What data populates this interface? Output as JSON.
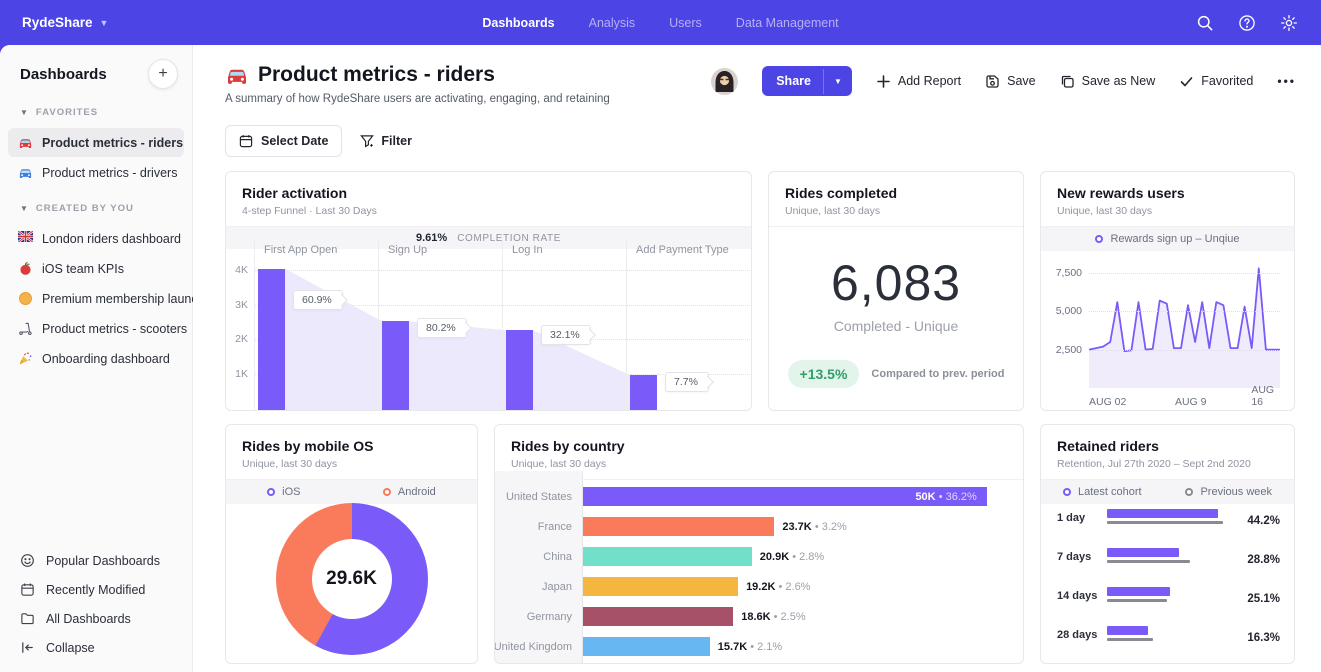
{
  "brand": {
    "name": "RydeShare"
  },
  "topnav": {
    "items": [
      {
        "label": "Dashboards",
        "active": true
      },
      {
        "label": "Analysis",
        "active": false
      },
      {
        "label": "Users",
        "active": false
      },
      {
        "label": "Data Management",
        "active": false
      }
    ]
  },
  "topbar_icons": [
    "search",
    "help",
    "settings"
  ],
  "sidebar": {
    "title": "Dashboards",
    "sections": [
      {
        "label": "FAVORITES",
        "items": [
          {
            "icon": "red-car",
            "label": "Product metrics - riders",
            "active": true
          },
          {
            "icon": "blue-car",
            "label": "Product metrics - drivers",
            "active": false
          }
        ]
      },
      {
        "label": "CREATED BY YOU",
        "items": [
          {
            "icon": "uk-flag",
            "label": "London riders dashboard",
            "active": false
          },
          {
            "icon": "apple",
            "label": "iOS team KPIs",
            "active": false
          },
          {
            "icon": "orange-circle",
            "label": "Premium membership launch",
            "active": false
          },
          {
            "icon": "scooter",
            "label": "Product metrics - scooters",
            "active": false
          },
          {
            "icon": "party",
            "label": "Onboarding dashboard",
            "active": false
          }
        ]
      }
    ],
    "footer_items": [
      {
        "icon": "smiley",
        "label": "Popular Dashboards"
      },
      {
        "icon": "calendar",
        "label": "Recently Modified"
      },
      {
        "icon": "folder",
        "label": "All Dashboards"
      },
      {
        "icon": "collapse",
        "label": "Collapse"
      }
    ]
  },
  "page": {
    "title": "Product metrics - riders",
    "subtitle": "A summary of how RydeShare users are activating, engaging, and retaining",
    "actions": {
      "share": "Share",
      "add_report": "Add Report",
      "save": "Save",
      "save_as_new": "Save as New",
      "favorited": "Favorited"
    },
    "toolbar": {
      "select_date": "Select Date",
      "filter": "Filter"
    }
  },
  "colors": {
    "header_purple": "#4C44E4",
    "accent_purple": "#7A5AF8",
    "funnel_area": "#EDE9FC",
    "coral": "#F97B5C",
    "teal": "#72DFC8",
    "amber": "#F4B63F",
    "maroon": "#A65168",
    "sky_blue": "#67B7F2",
    "green_text": "#2E9E6B",
    "green_bg": "#E3F4EA",
    "prev_week_gray": "#8A8A92"
  },
  "chart_data": [
    {
      "id": "rider_activation",
      "type": "bar",
      "title": "Rider activation",
      "subtitle": "4-step Funnel · Last 30 Days",
      "completion_rate": "9.61%",
      "completion_label": "COMPLETION RATE",
      "ymax": 4300,
      "y_ticks": [
        {
          "label": "4K",
          "value": 4000
        },
        {
          "label": "3K",
          "value": 3000
        },
        {
          "label": "2K",
          "value": 2000
        },
        {
          "label": "1K",
          "value": 1000
        }
      ],
      "steps": [
        {
          "label": "First App Open",
          "value": 4050,
          "conversion": "60.9%",
          "tag_level": 3150
        },
        {
          "label": "Sign Up",
          "value": 2520,
          "conversion": "80.2%",
          "tag_level": 2330
        },
        {
          "label": "Log In",
          "value": 2260,
          "conversion": "32.1%",
          "tag_level": 2120
        },
        {
          "label": "Add Payment Type",
          "value": 950,
          "conversion": "7.7%",
          "tag_level": 760
        }
      ]
    },
    {
      "id": "rides_completed",
      "type": "table",
      "title": "Rides completed",
      "subtitle": "Unique, last 30 days",
      "value": "6,083",
      "value_label": "Completed - Unique",
      "delta": "+13.5%",
      "delta_label": "Compared to prev. period",
      "delta_positive": true
    },
    {
      "id": "new_rewards_users",
      "type": "line",
      "title": "New rewards users",
      "subtitle": "Unique, last 30 days",
      "legend": [
        {
          "label": "Rewards sign up – Unqiue",
          "color": "#7A5AF8"
        }
      ],
      "x_ticks": [
        {
          "label": "AUG 02",
          "pos": 0
        },
        {
          "label": "AUG 9",
          "pos": 0.45
        },
        {
          "label": "AUG 16",
          "pos": 0.85
        }
      ],
      "y_ticks": [
        {
          "label": "7,500",
          "value": 7500
        },
        {
          "label": "5,000",
          "value": 5000
        },
        {
          "label": "2,500",
          "value": 2500
        }
      ],
      "ymin": 0,
      "ymax": 9000,
      "values": [
        2500,
        2600,
        2700,
        3000,
        5600,
        2400,
        2450,
        5600,
        2500,
        2550,
        5700,
        5500,
        2600,
        2600,
        5400,
        3000,
        5600,
        2600,
        5600,
        5400,
        2600,
        2600,
        5300,
        2600,
        7800,
        2500,
        2500,
        2500
      ]
    },
    {
      "id": "rides_by_mobile_os",
      "type": "pie",
      "title": "Rides by mobile OS",
      "subtitle": "Unique, last 30 days",
      "center_total": "29.6K",
      "slices": [
        {
          "label": "iOS",
          "percent": 58,
          "color": "#7A5AF8"
        },
        {
          "label": "Android",
          "percent": 42,
          "color": "#F97B5C"
        }
      ]
    },
    {
      "id": "rides_by_country",
      "type": "bar",
      "title": "Rides by country",
      "subtitle": "Unique, last 30 days",
      "xmax": 52500,
      "bars": [
        {
          "label": "United States",
          "value": 50000,
          "value_label": "50K",
          "percent": "36.2%",
          "color": "#7A5AF8",
          "label_inside": true
        },
        {
          "label": "France",
          "value": 23700,
          "value_label": "23.7K",
          "percent": "3.2%",
          "color": "#F97B5C",
          "label_inside": false
        },
        {
          "label": "China",
          "value": 20900,
          "value_label": "20.9K",
          "percent": "2.8%",
          "color": "#72DFC8",
          "label_inside": false
        },
        {
          "label": "Japan",
          "value": 19200,
          "value_label": "19.2K",
          "percent": "2.6%",
          "color": "#F4B63F",
          "label_inside": false
        },
        {
          "label": "Germany",
          "value": 18600,
          "value_label": "18.6K",
          "percent": "2.5%",
          "color": "#A65168",
          "label_inside": false
        },
        {
          "label": "United Kingdom",
          "value": 15700,
          "value_label": "15.7K",
          "percent": "2.1%",
          "color": "#67B7F2",
          "label_inside": false
        }
      ]
    },
    {
      "id": "retained_riders",
      "type": "bar",
      "title": "Retained riders",
      "subtitle": "Retention, Jul 27th 2020 – Sept 2nd 2020",
      "legend": [
        {
          "label": "Latest cohort",
          "color": "#7A5AF8"
        },
        {
          "label": "Previous week",
          "color": "#8A8A92"
        }
      ],
      "xmax": 50,
      "rows": [
        {
          "label": "1 day",
          "latest": 44.2,
          "previous": 46.3,
          "percent": "44.2%"
        },
        {
          "label": "7 days",
          "latest": 28.8,
          "previous": 33.0,
          "percent": "28.8%"
        },
        {
          "label": "14 days",
          "latest": 25.1,
          "previous": 24.1,
          "percent": "25.1%"
        },
        {
          "label": "28 days",
          "latest": 16.3,
          "previous": 18.2,
          "percent": "16.3%"
        }
      ]
    }
  ]
}
